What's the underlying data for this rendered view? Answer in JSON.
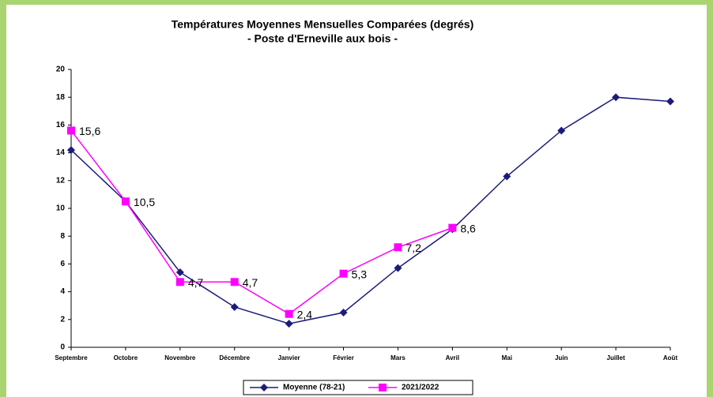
{
  "chart_data": {
    "type": "line",
    "title": "Températures Moyennes Mensuelles Comparées (degrés)",
    "subtitle": "- Poste d'Erneville aux bois -",
    "categories": [
      "Septembre",
      "Octobre",
      "Novembre",
      "Décembre",
      "Janvier",
      "Février",
      "Mars",
      "Avril",
      "Mai",
      "Juin",
      "Juillet",
      "Août"
    ],
    "series": [
      {
        "name": "Moyenne (78-21)",
        "color": "#1c1c78",
        "marker": "diamond",
        "values": [
          14.2,
          10.5,
          5.4,
          2.9,
          1.7,
          2.5,
          5.7,
          8.5,
          12.3,
          15.6,
          18.0,
          17.7
        ]
      },
      {
        "name": "2021/2022",
        "color": "#ff00ff",
        "marker": "square",
        "values": [
          15.6,
          10.5,
          4.7,
          4.7,
          2.4,
          5.3,
          7.2,
          8.6,
          null,
          null,
          null,
          null
        ],
        "value_labels": [
          "15,6",
          "10,5",
          "4,7",
          "4,7",
          "2,4",
          "5,3",
          "7,2",
          "8,6",
          null,
          null,
          null,
          null
        ]
      }
    ],
    "ylim": [
      0,
      20
    ],
    "yticks": [
      0,
      2,
      4,
      6,
      8,
      10,
      12,
      14,
      16,
      18,
      20
    ],
    "grid": false,
    "legend": "bottom"
  }
}
